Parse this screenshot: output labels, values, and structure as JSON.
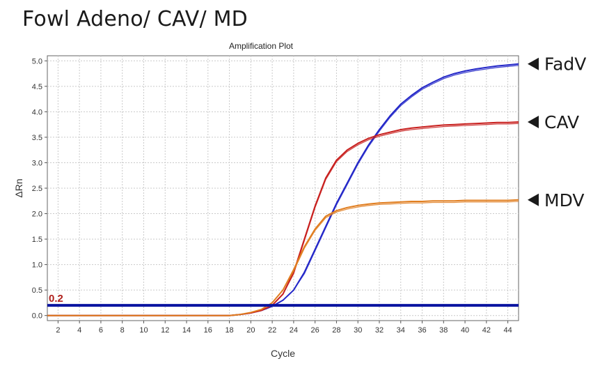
{
  "page": {
    "title": "Fowl Adeno/ CAV/ MD"
  },
  "chart_data": {
    "type": "line",
    "title": "Amplification Plot",
    "xlabel": "Cycle",
    "ylabel": "ΔRn",
    "xlim": [
      1,
      45
    ],
    "ylim": [
      -0.1,
      5.1
    ],
    "x_ticks": [
      2,
      4,
      6,
      8,
      10,
      12,
      14,
      16,
      18,
      20,
      22,
      24,
      26,
      28,
      30,
      32,
      34,
      36,
      38,
      40,
      42,
      44
    ],
    "y_ticks": [
      0.0,
      0.5,
      1.0,
      1.5,
      2.0,
      2.5,
      3.0,
      3.5,
      4.0,
      4.5,
      5.0
    ],
    "y_tick_labels": [
      "0.0",
      "0.5",
      "1.0",
      "1.5",
      "2.0",
      "2.5",
      "3.0",
      "3.5",
      "4.0",
      "4.5",
      "5.0"
    ],
    "grid": true,
    "threshold": {
      "value": 0.2,
      "label": "0.2",
      "color": "#0a14a0"
    },
    "x": [
      1,
      2,
      4,
      6,
      8,
      10,
      12,
      14,
      16,
      18,
      19,
      20,
      21,
      22,
      23,
      24,
      25,
      26,
      27,
      28,
      29,
      30,
      31,
      32,
      33,
      34,
      35,
      36,
      37,
      38,
      39,
      40,
      41,
      42,
      43,
      44,
      45
    ],
    "series": [
      {
        "name": "FadV",
        "color": "#2327c8",
        "values": [
          0,
          0,
          0,
          0,
          0,
          0,
          0,
          0,
          0,
          0,
          0.02,
          0.05,
          0.1,
          0.18,
          0.3,
          0.5,
          0.85,
          1.3,
          1.75,
          2.2,
          2.6,
          3.0,
          3.35,
          3.65,
          3.92,
          4.15,
          4.32,
          4.47,
          4.58,
          4.68,
          4.75,
          4.8,
          4.84,
          4.87,
          4.9,
          4.92,
          4.94
        ]
      },
      {
        "name": "CAV",
        "color": "#c8201e",
        "values": [
          0,
          0,
          0,
          0,
          0,
          0,
          0,
          0,
          0,
          0,
          0.02,
          0.05,
          0.1,
          0.2,
          0.42,
          0.85,
          1.5,
          2.15,
          2.7,
          3.05,
          3.25,
          3.38,
          3.48,
          3.55,
          3.6,
          3.65,
          3.68,
          3.7,
          3.72,
          3.74,
          3.75,
          3.76,
          3.77,
          3.78,
          3.79,
          3.79,
          3.8
        ]
      },
      {
        "name": "MDV",
        "color": "#e07d1e",
        "values": [
          0,
          0,
          0,
          0,
          0,
          0,
          0,
          0,
          0,
          0,
          0.02,
          0.06,
          0.12,
          0.25,
          0.5,
          0.9,
          1.35,
          1.7,
          1.95,
          2.06,
          2.12,
          2.16,
          2.19,
          2.21,
          2.22,
          2.23,
          2.24,
          2.24,
          2.25,
          2.25,
          2.25,
          2.26,
          2.26,
          2.26,
          2.26,
          2.26,
          2.27
        ]
      }
    ],
    "annotations": [
      {
        "text": "FadV",
        "series": "FadV"
      },
      {
        "text": "CAV",
        "series": "CAV"
      },
      {
        "text": "MDV",
        "series": "MDV"
      }
    ]
  }
}
